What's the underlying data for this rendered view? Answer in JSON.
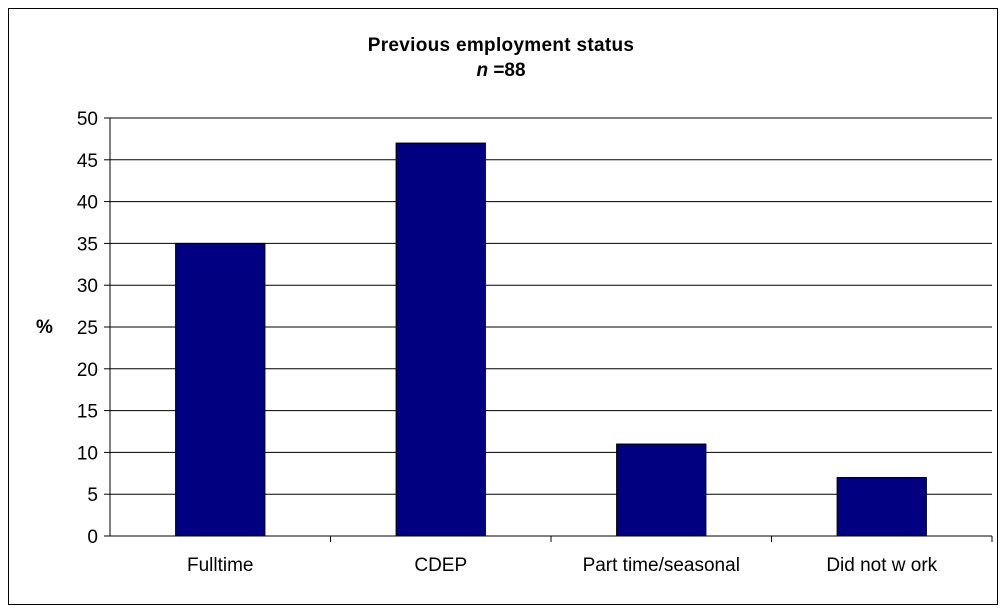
{
  "chart_data": {
    "type": "bar",
    "title": "Previous employment status",
    "subtitle_var": "n",
    "subtitle_value": "=88",
    "ylabel": "%",
    "xlabel": "",
    "categories": [
      "Fulltime",
      "CDEP",
      "Part time/seasonal",
      "Did not w ork"
    ],
    "values": [
      35,
      47,
      11,
      7
    ],
    "ylim": [
      0,
      50
    ],
    "yticks": [
      "0",
      "5",
      "10",
      "15",
      "20",
      "25",
      "30",
      "35",
      "40",
      "45",
      "50"
    ],
    "grid": true,
    "legend": "none",
    "bar_color": "#000080"
  }
}
